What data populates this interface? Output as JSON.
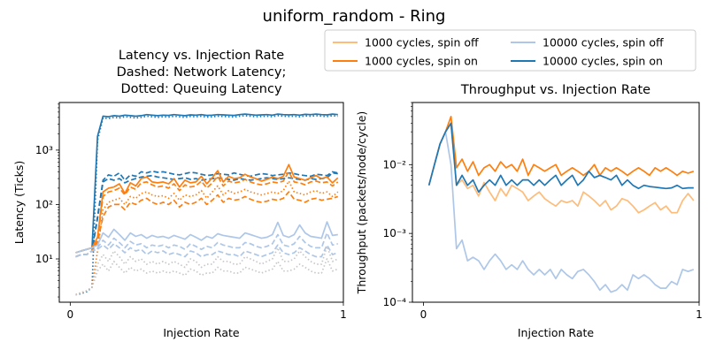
{
  "figure": {
    "suptitle": "uniform_random - Ring"
  },
  "legend": {
    "placement": "top-right",
    "entries": [
      {
        "label": "1000 cycles, spin off",
        "color": "#ffbb78"
      },
      {
        "label": "1000 cycles, spin on",
        "color": "#ff7f0e"
      },
      {
        "label": "10000 cycles, spin off",
        "color": "#aec7e8"
      },
      {
        "label": "10000 cycles, spin on",
        "color": "#1f77b4"
      }
    ]
  },
  "chart_data": [
    {
      "type": "line",
      "title": [
        "Latency vs. Injection Rate",
        "Dashed: Network Latency;",
        "Dotted: Queuing Latency"
      ],
      "xlabel": "Injection Rate",
      "ylabel": "Latency (Ticks)",
      "yscale": "log",
      "xlim": [
        -0.04,
        1.0
      ],
      "ylim": [
        1.6,
        7500
      ],
      "xticks": [
        0,
        1
      ],
      "xtick_labels": [
        "0",
        "1"
      ],
      "yticks": [
        10,
        100,
        1000
      ],
      "ytick_labels": [
        "10¹",
        "10²",
        "10³"
      ],
      "x": [
        0.02,
        0.04,
        0.06,
        0.08,
        0.1,
        0.12,
        0.14,
        0.16,
        0.18,
        0.2,
        0.22,
        0.24,
        0.26,
        0.28,
        0.3,
        0.32,
        0.34,
        0.36,
        0.38,
        0.4,
        0.42,
        0.44,
        0.46,
        0.48,
        0.5,
        0.52,
        0.54,
        0.56,
        0.58,
        0.6,
        0.62,
        0.64,
        0.66,
        0.68,
        0.7,
        0.72,
        0.74,
        0.76,
        0.78,
        0.8,
        0.82,
        0.84,
        0.86,
        0.88,
        0.9,
        0.92,
        0.94,
        0.96,
        0.98
      ],
      "series": [
        {
          "color": "#1f77b4",
          "dash": "solid",
          "values": [
            13,
            14,
            15,
            16,
            1800,
            4200,
            4100,
            4300,
            4200,
            4400,
            4300,
            4200,
            4300,
            4500,
            4400,
            4300,
            4400,
            4350,
            4500,
            4400,
            4300,
            4450,
            4400,
            4500,
            4350,
            4400,
            4500,
            4450,
            4400,
            4350,
            4500,
            4600,
            4500,
            4400,
            4450,
            4500,
            4400,
            4600,
            4500,
            4450,
            4500,
            4400,
            4550,
            4500,
            4600,
            4500,
            4450,
            4600,
            4500
          ]
        },
        {
          "color": "#1f77b4",
          "dash": "dotted",
          "values": [
            2.2,
            2.3,
            2.5,
            3,
            1500,
            3900,
            3800,
            4000,
            3900,
            4100,
            4000,
            3900,
            4000,
            4200,
            4100,
            4000,
            4100,
            4050,
            4200,
            4100,
            4000,
            4150,
            4100,
            4200,
            4050,
            4100,
            4200,
            4150,
            4100,
            4050,
            4200,
            4300,
            4200,
            4100,
            4150,
            4200,
            4100,
            4300,
            4200,
            4150,
            4200,
            4100,
            4250,
            4200,
            4300,
            4200,
            4150,
            4300,
            4200
          ]
        },
        {
          "color": "#1f77b4",
          "dash": "dashed",
          "values": [
            11,
            12,
            12,
            14,
            60,
            280,
            350,
            330,
            380,
            280,
            350,
            330,
            400,
            380,
            410,
            390,
            400,
            380,
            360,
            350,
            370,
            390,
            380,
            360,
            340,
            350,
            370,
            360,
            350,
            380,
            360,
            340,
            330,
            350,
            370,
            360,
            340,
            350,
            360,
            380,
            370,
            350,
            340,
            330,
            360,
            350,
            340,
            400,
            380
          ]
        },
        {
          "color": "#1f77b4",
          "dash": "dashed",
          "values": [
            11,
            12,
            12,
            14,
            55,
            260,
            300,
            280,
            300,
            250,
            280,
            300,
            320,
            330,
            340,
            320,
            310,
            300,
            290,
            300,
            310,
            290,
            300,
            280,
            290,
            300,
            310,
            300,
            290,
            280,
            300,
            290,
            280,
            290,
            300,
            310,
            300,
            290,
            300,
            310,
            300,
            290,
            280,
            300,
            290,
            300,
            310,
            380,
            370
          ]
        },
        {
          "color": "#ff7f0e",
          "dash": "solid",
          "values": [
            13,
            14,
            15,
            16,
            25,
            170,
            200,
            210,
            240,
            160,
            250,
            220,
            300,
            320,
            260,
            250,
            260,
            240,
            300,
            210,
            280,
            250,
            260,
            330,
            240,
            310,
            420,
            260,
            330,
            300,
            310,
            360,
            320,
            300,
            270,
            290,
            320,
            300,
            330,
            540,
            320,
            300,
            280,
            310,
            340,
            300,
            320,
            250,
            310
          ]
        },
        {
          "color": "#ff7f0e",
          "dash": "dashed",
          "values": [
            11,
            12,
            12,
            14,
            22,
            140,
            170,
            180,
            200,
            150,
            210,
            190,
            250,
            260,
            230,
            210,
            220,
            200,
            240,
            180,
            230,
            210,
            220,
            270,
            200,
            250,
            330,
            220,
            270,
            250,
            260,
            290,
            260,
            240,
            230,
            240,
            260,
            250,
            270,
            400,
            260,
            250,
            230,
            260,
            270,
            250,
            260,
            220,
            260
          ]
        },
        {
          "color": "#ff7f0e",
          "dash": "dotted",
          "values": [
            2.2,
            2.4,
            2.6,
            3,
            14,
            80,
            110,
            120,
            130,
            100,
            140,
            130,
            160,
            170,
            150,
            140,
            145,
            130,
            160,
            120,
            150,
            140,
            150,
            180,
            130,
            170,
            220,
            150,
            180,
            160,
            170,
            190,
            170,
            160,
            150,
            160,
            170,
            160,
            180,
            270,
            170,
            160,
            150,
            170,
            180,
            160,
            170,
            140,
            170
          ]
        },
        {
          "color": "#ff7f0e",
          "dash": "dashed",
          "values": [
            11,
            12,
            12,
            14,
            20,
            60,
            90,
            100,
            100,
            80,
            110,
            100,
            120,
            130,
            110,
            100,
            110,
            100,
            120,
            90,
            110,
            100,
            110,
            130,
            100,
            120,
            150,
            110,
            130,
            120,
            125,
            140,
            125,
            115,
            110,
            115,
            125,
            120,
            130,
            170,
            125,
            120,
            110,
            125,
            130,
            120,
            125,
            130,
            140
          ]
        },
        {
          "color": "#aec7e8",
          "dash": "solid",
          "values": [
            13,
            14,
            15,
            16,
            18,
            30,
            25,
            35,
            28,
            22,
            30,
            26,
            28,
            24,
            27,
            25,
            26,
            24,
            27,
            25,
            23,
            28,
            25,
            22,
            26,
            24,
            29,
            27,
            26,
            25,
            24,
            30,
            28,
            26,
            24,
            25,
            28,
            47,
            27,
            25,
            28,
            42,
            30,
            26,
            25,
            24,
            48,
            27,
            28
          ]
        },
        {
          "color": "#aec7e8",
          "dash": "dashed",
          "values": [
            11,
            12,
            12,
            14,
            16,
            22,
            18,
            24,
            20,
            16,
            21,
            18,
            19,
            16,
            18,
            17,
            18,
            16,
            18,
            17,
            15,
            19,
            17,
            15,
            17,
            16,
            20,
            18,
            17,
            16,
            16,
            20,
            19,
            17,
            16,
            17,
            19,
            28,
            18,
            17,
            19,
            26,
            20,
            17,
            16,
            16,
            30,
            18,
            19
          ]
        },
        {
          "color": "#aec7e8",
          "dash": "dashed",
          "values": [
            11,
            12,
            12,
            14,
            15,
            18,
            15,
            19,
            16,
            13,
            16,
            14,
            15,
            12,
            14,
            13,
            14,
            12,
            13,
            12,
            11,
            14,
            13,
            11,
            12,
            12,
            14,
            13,
            12,
            12,
            11,
            14,
            13,
            12,
            11,
            12,
            13,
            18,
            13,
            12,
            13,
            16,
            14,
            12,
            11,
            11,
            18,
            12,
            13
          ]
        },
        {
          "color": "#c7c7c7",
          "dash": "dotted",
          "values": [
            2.2,
            2.4,
            2.6,
            3,
            8,
            12,
            9,
            14,
            11,
            8,
            11,
            9,
            10,
            8,
            9,
            8,
            9,
            8,
            9,
            8,
            7,
            10,
            9,
            7,
            8,
            8,
            11,
            9,
            9,
            8,
            8,
            11,
            10,
            9,
            8,
            9,
            10,
            16,
            9,
            9,
            10,
            14,
            11,
            9,
            8,
            8,
            17,
            9,
            10
          ]
        },
        {
          "color": "#c7c7c7",
          "dash": "dotted",
          "values": [
            2.2,
            2.4,
            2.6,
            3,
            6,
            8,
            6,
            9,
            7,
            5.5,
            7,
            6,
            6.5,
            5.5,
            6,
            5.5,
            6,
            5.5,
            6,
            5.5,
            5,
            6.5,
            6,
            5,
            5.5,
            5.5,
            7,
            6,
            6,
            5.5,
            5.5,
            7,
            6.5,
            6,
            5.5,
            6,
            6.5,
            9,
            6,
            6,
            6.5,
            8,
            7,
            6,
            5.5,
            5.5,
            10,
            6,
            6.5
          ]
        }
      ]
    },
    {
      "type": "line",
      "title": [
        "Throughput vs. Injection Rate"
      ],
      "xlabel": "Injection Rate",
      "ylabel": "Throughput (packets/node/cycle)",
      "yscale": "log",
      "xlim": [
        -0.04,
        1.0
      ],
      "ylim": [
        0.0001,
        0.08
      ],
      "xticks": [
        0,
        1
      ],
      "xtick_labels": [
        "0",
        "1"
      ],
      "yticks": [
        0.0001,
        0.001,
        0.01
      ],
      "ytick_labels": [
        "10⁻⁴",
        "10⁻³",
        "10⁻²"
      ],
      "x": [
        0.02,
        0.04,
        0.06,
        0.08,
        0.1,
        0.12,
        0.14,
        0.16,
        0.18,
        0.2,
        0.22,
        0.24,
        0.26,
        0.28,
        0.3,
        0.32,
        0.34,
        0.36,
        0.38,
        0.4,
        0.42,
        0.44,
        0.46,
        0.48,
        0.5,
        0.52,
        0.54,
        0.56,
        0.58,
        0.6,
        0.62,
        0.64,
        0.66,
        0.68,
        0.7,
        0.72,
        0.74,
        0.76,
        0.78,
        0.8,
        0.82,
        0.84,
        0.86,
        0.88,
        0.9,
        0.92,
        0.94,
        0.96,
        0.98
      ],
      "series": [
        {
          "name": "1000 cycles, spin off",
          "color": "#ffbb78",
          "values": [
            0.005,
            0.01,
            0.02,
            0.03,
            0.04,
            0.005,
            0.006,
            0.0045,
            0.005,
            0.0035,
            0.0055,
            0.004,
            0.003,
            0.0045,
            0.0035,
            0.005,
            0.0045,
            0.004,
            0.003,
            0.0035,
            0.004,
            0.0032,
            0.0028,
            0.0025,
            0.003,
            0.0028,
            0.003,
            0.0025,
            0.004,
            0.0035,
            0.003,
            0.0025,
            0.003,
            0.0022,
            0.0025,
            0.0032,
            0.003,
            0.0025,
            0.002,
            0.0022,
            0.0025,
            0.0028,
            0.0022,
            0.0025,
            0.002,
            0.002,
            0.003,
            0.0038,
            0.003
          ]
        },
        {
          "name": "1000 cycles, spin on",
          "color": "#ff7f0e",
          "values": [
            0.005,
            0.01,
            0.02,
            0.03,
            0.05,
            0.009,
            0.012,
            0.008,
            0.011,
            0.007,
            0.009,
            0.01,
            0.008,
            0.011,
            0.009,
            0.01,
            0.008,
            0.012,
            0.007,
            0.01,
            0.009,
            0.008,
            0.009,
            0.01,
            0.007,
            0.008,
            0.009,
            0.008,
            0.007,
            0.008,
            0.01,
            0.007,
            0.009,
            0.008,
            0.009,
            0.008,
            0.007,
            0.008,
            0.009,
            0.008,
            0.007,
            0.009,
            0.008,
            0.009,
            0.008,
            0.007,
            0.008,
            0.0075,
            0.008
          ]
        },
        {
          "name": "10000 cycles, spin off",
          "color": "#aec7e8",
          "values": [
            0.005,
            0.01,
            0.02,
            0.03,
            0.01,
            0.0006,
            0.0008,
            0.0004,
            0.00045,
            0.0004,
            0.0003,
            0.0004,
            0.0005,
            0.0004,
            0.0003,
            0.00035,
            0.0003,
            0.0004,
            0.0003,
            0.00025,
            0.0003,
            0.00025,
            0.0003,
            0.00022,
            0.0003,
            0.00025,
            0.00022,
            0.00028,
            0.0003,
            0.00025,
            0.0002,
            0.00015,
            0.00018,
            0.00014,
            0.00015,
            0.00018,
            0.00015,
            0.00025,
            0.00022,
            0.00025,
            0.00022,
            0.00018,
            0.00016,
            0.00016,
            0.0002,
            0.00018,
            0.0003,
            0.00028,
            0.0003
          ]
        },
        {
          "name": "10000 cycles, spin on",
          "color": "#1f77b4",
          "values": [
            0.005,
            0.01,
            0.02,
            0.03,
            0.04,
            0.005,
            0.007,
            0.005,
            0.006,
            0.004,
            0.005,
            0.006,
            0.005,
            0.007,
            0.005,
            0.006,
            0.005,
            0.006,
            0.006,
            0.005,
            0.006,
            0.005,
            0.006,
            0.007,
            0.005,
            0.006,
            0.007,
            0.005,
            0.006,
            0.008,
            0.0065,
            0.007,
            0.0065,
            0.006,
            0.007,
            0.005,
            0.006,
            0.005,
            0.0045,
            0.005,
            0.0048,
            0.0047,
            0.0046,
            0.0045,
            0.0046,
            0.005,
            0.0045,
            0.0046,
            0.0046
          ]
        }
      ]
    }
  ]
}
